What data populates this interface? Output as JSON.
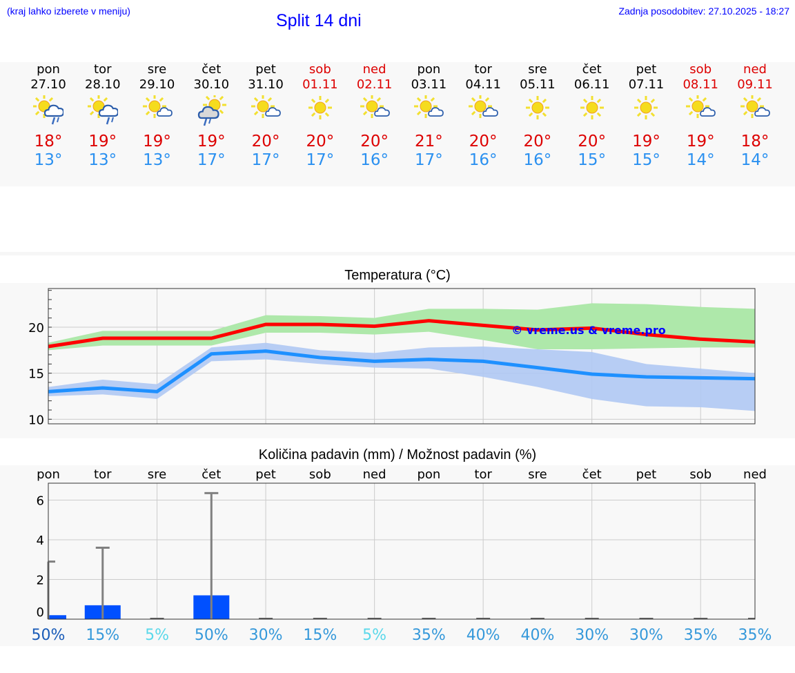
{
  "header": {
    "hint": "(kraj lahko izberete v meniju)",
    "title": "Split 14 dni",
    "updated": "Zadnja posodobitev: 27.10.2025 - 18:27"
  },
  "days": [
    {
      "name": "pon",
      "date": "27.10",
      "icon": "sun-cloud-rain",
      "max": "18°",
      "min": "13°",
      "weekend": false
    },
    {
      "name": "tor",
      "date": "28.10",
      "icon": "sun-cloud-rain",
      "max": "19°",
      "min": "13°",
      "weekend": false
    },
    {
      "name": "sre",
      "date": "29.10",
      "icon": "sun-small-cloud",
      "max": "19°",
      "min": "13°",
      "weekend": false
    },
    {
      "name": "čet",
      "date": "30.10",
      "icon": "grey-cloud-rain-sun",
      "max": "19°",
      "min": "17°",
      "weekend": false
    },
    {
      "name": "pet",
      "date": "31.10",
      "icon": "sun-small-cloud",
      "max": "20°",
      "min": "17°",
      "weekend": false
    },
    {
      "name": "sob",
      "date": "01.11",
      "icon": "sun",
      "max": "20°",
      "min": "17°",
      "weekend": true
    },
    {
      "name": "ned",
      "date": "02.11",
      "icon": "sun-small-cloud",
      "max": "20°",
      "min": "16°",
      "weekend": true
    },
    {
      "name": "pon",
      "date": "03.11",
      "icon": "sun-small-cloud",
      "max": "21°",
      "min": "17°",
      "weekend": false
    },
    {
      "name": "tor",
      "date": "04.11",
      "icon": "sun-small-cloud",
      "max": "20°",
      "min": "16°",
      "weekend": false
    },
    {
      "name": "sre",
      "date": "05.11",
      "icon": "sun",
      "max": "20°",
      "min": "16°",
      "weekend": false
    },
    {
      "name": "čet",
      "date": "06.11",
      "icon": "sun",
      "max": "20°",
      "min": "15°",
      "weekend": false
    },
    {
      "name": "pet",
      "date": "07.11",
      "icon": "sun",
      "max": "19°",
      "min": "15°",
      "weekend": false
    },
    {
      "name": "sob",
      "date": "08.11",
      "icon": "sun-small-cloud",
      "max": "19°",
      "min": "14°",
      "weekend": true
    },
    {
      "name": "ned",
      "date": "09.11",
      "icon": "sun-small-cloud",
      "max": "18°",
      "min": "14°",
      "weekend": true
    }
  ],
  "colors": {
    "max": "#ff0000",
    "min": "#1e90ff",
    "max_band": "#aee8aa",
    "min_band": "#afc8f3",
    "bar": "#0050ff",
    "err": "#808080"
  },
  "chart_data": [
    {
      "type": "line",
      "title": "Temperatura (°C)",
      "watermark": "© vreme.us & vreme.pro",
      "x": [
        0,
        1,
        2,
        3,
        4,
        5,
        6,
        7,
        8,
        9,
        10,
        11,
        12,
        13
      ],
      "ylim": [
        9.5,
        24.2
      ],
      "yticks": [
        10,
        15,
        20
      ],
      "series": [
        {
          "name": "max",
          "values": [
            17.9,
            18.8,
            18.8,
            18.8,
            20.3,
            20.3,
            20.1,
            20.7,
            20.2,
            19.7,
            19.9,
            19.2,
            18.7,
            18.4
          ],
          "band_hi": [
            18.3,
            19.6,
            19.6,
            19.6,
            21.3,
            21.2,
            21.0,
            22.0,
            22.0,
            21.9,
            22.6,
            22.5,
            22.2,
            22.0
          ],
          "band_lo": [
            17.5,
            18.0,
            18.0,
            18.0,
            19.4,
            19.4,
            19.2,
            19.5,
            18.6,
            17.6,
            17.6,
            17.7,
            17.8,
            17.8
          ]
        },
        {
          "name": "min",
          "values": [
            13.0,
            13.4,
            13.0,
            17.1,
            17.4,
            16.7,
            16.3,
            16.5,
            16.3,
            15.6,
            14.9,
            14.6,
            14.5,
            14.4
          ],
          "band_hi": [
            13.5,
            14.3,
            13.8,
            17.8,
            18.3,
            17.5,
            17.2,
            17.8,
            17.9,
            17.6,
            17.3,
            16.0,
            15.5,
            15.0
          ],
          "band_lo": [
            12.5,
            12.7,
            12.2,
            16.3,
            16.5,
            16.0,
            15.6,
            15.5,
            14.6,
            13.5,
            12.2,
            11.4,
            11.3,
            10.9
          ]
        }
      ]
    },
    {
      "type": "bar",
      "title": "Količina padavin (mm) / Možnost padavin (%)",
      "categories": [
        "pon",
        "tor",
        "sre",
        "čet",
        "pet",
        "sob",
        "ned",
        "pon",
        "tor",
        "sre",
        "čet",
        "pet",
        "sob",
        "ned"
      ],
      "values": [
        0.2,
        0.7,
        0,
        1.2,
        0,
        0,
        0,
        0,
        0,
        0,
        0,
        0,
        0,
        0
      ],
      "err_max": [
        2.9,
        3.6,
        0,
        6.35,
        0,
        0,
        0,
        0,
        0,
        0,
        0,
        0,
        0,
        0
      ],
      "ylim": [
        0,
        6.85
      ],
      "yticks": [
        0,
        2,
        4,
        6
      ],
      "probability": [
        "50%",
        "15%",
        "5%",
        "50%",
        "30%",
        "15%",
        "5%",
        "35%",
        "40%",
        "40%",
        "30%",
        "30%",
        "35%",
        "35%"
      ]
    }
  ]
}
